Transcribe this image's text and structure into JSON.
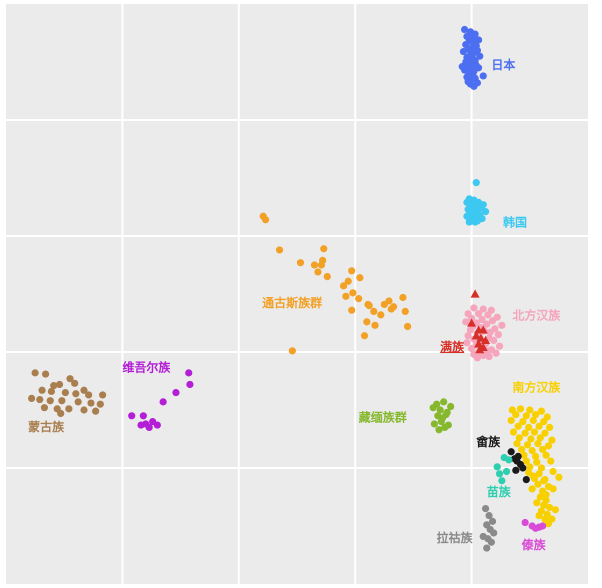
{
  "chart_data": {
    "type": "scatter",
    "title": "",
    "xlabel": "",
    "ylabel": "",
    "xlim": [
      0,
      5
    ],
    "ylim": [
      0,
      5
    ],
    "grid": true,
    "legend": "none",
    "colors": {
      "background": "#ebebeb",
      "grid": "#ffffff"
    },
    "series": [
      {
        "name": "日本",
        "color": "#4c6ef0",
        "marker": "circle",
        "x": [
          3.94,
          3.99,
          4.03,
          3.96,
          4.01,
          4.06,
          3.98,
          4.02,
          3.95,
          4.04,
          4.0,
          3.97,
          4.05,
          3.93,
          4.02,
          3.99,
          4.07,
          3.96,
          4.01,
          3.98,
          4.03,
          3.95,
          4.0,
          3.97,
          4.04,
          3.92,
          4.06,
          3.99,
          3.94,
          4.02,
          3.98,
          4.01,
          4.1,
          3.96,
          4.03,
          4.0,
          3.97,
          4.05,
          3.99,
          4.02
        ],
        "y": [
          4.78,
          4.76,
          4.74,
          4.72,
          4.71,
          4.69,
          4.68,
          4.66,
          4.65,
          4.64,
          4.62,
          4.61,
          4.6,
          4.59,
          4.58,
          4.56,
          4.55,
          4.54,
          4.53,
          4.52,
          4.51,
          4.5,
          4.49,
          4.48,
          4.47,
          4.46,
          4.45,
          4.44,
          4.43,
          4.42,
          4.4,
          4.39,
          4.38,
          4.37,
          4.36,
          4.35,
          4.33,
          4.32,
          4.31,
          4.29
        ]
      },
      {
        "name": "韩国",
        "color": "#3cc8f0",
        "marker": "circle",
        "x": [
          4.04,
          3.98,
          4.02,
          3.96,
          4.06,
          4.0,
          4.1,
          3.99,
          4.03,
          4.08,
          3.97,
          4.05,
          4.01,
          4.12,
          3.99,
          4.04,
          4.07,
          3.96,
          4.02,
          4.09,
          4.0,
          4.05,
          3.98,
          4.03
        ],
        "y": [
          3.46,
          3.32,
          3.31,
          3.29,
          3.29,
          3.28,
          3.27,
          3.26,
          3.25,
          3.24,
          3.23,
          3.23,
          3.22,
          3.21,
          3.2,
          3.19,
          3.18,
          3.17,
          3.16,
          3.15,
          3.14,
          3.13,
          3.12,
          3.12
        ]
      },
      {
        "name": "北方汉族",
        "color": "#f5a5bc",
        "marker": "circle",
        "x": [
          4.02,
          4.1,
          4.17,
          3.97,
          4.06,
          4.14,
          4.22,
          4.0,
          4.09,
          4.18,
          3.95,
          4.04,
          4.13,
          4.26,
          4.01,
          4.08,
          4.2,
          3.99,
          4.11,
          4.16,
          4.05,
          4.23,
          3.97,
          4.07,
          4.15,
          4.02,
          4.19,
          4.1,
          3.96,
          4.12,
          4.04,
          4.24,
          4.08,
          4.0,
          4.17,
          4.13,
          4.06,
          4.21,
          4.02,
          4.1,
          4.15,
          4.05
        ],
        "y": [
          2.38,
          2.37,
          2.36,
          2.33,
          2.33,
          2.32,
          2.3,
          2.29,
          2.28,
          2.27,
          2.26,
          2.25,
          2.24,
          2.23,
          2.22,
          2.21,
          2.2,
          2.19,
          2.18,
          2.17,
          2.16,
          2.15,
          2.14,
          2.13,
          2.12,
          2.11,
          2.1,
          2.09,
          2.08,
          2.07,
          2.06,
          2.05,
          2.04,
          2.03,
          2.02,
          2.01,
          2.0,
          1.99,
          1.98,
          1.97,
          1.96,
          1.95
        ]
      },
      {
        "name": "满族",
        "color": "#d62f28",
        "marker": "triangle",
        "x": [
          4.03,
          4.0,
          4.06,
          4.1,
          4.04,
          4.08,
          4.12,
          4.06,
          4.1,
          4.07
        ],
        "y": [
          2.5,
          2.25,
          2.19,
          2.19,
          2.14,
          2.12,
          2.1,
          2.07,
          2.04,
          2.02
        ]
      },
      {
        "name": "南方汉族",
        "color": "#f8d000",
        "marker": "circle",
        "x": [
          4.35,
          4.42,
          4.5,
          4.6,
          4.38,
          4.47,
          4.55,
          4.65,
          4.34,
          4.44,
          4.53,
          4.62,
          4.4,
          4.49,
          4.58,
          4.67,
          4.36,
          4.46,
          4.54,
          4.63,
          4.41,
          4.51,
          4.59,
          4.69,
          4.39,
          4.48,
          4.57,
          4.66,
          4.43,
          4.52,
          4.61,
          4.45,
          4.55,
          4.64,
          4.47,
          4.56,
          4.68,
          4.5,
          4.6,
          4.49,
          4.58,
          4.54,
          4.63,
          4.57,
          4.52,
          4.66,
          4.61,
          4.7,
          4.59,
          4.56,
          4.64,
          4.62,
          4.67,
          4.6,
          4.72,
          4.58,
          4.65,
          4.63,
          4.69,
          4.66,
          4.53,
          4.62,
          4.7,
          4.75,
          4.64
        ],
        "y": [
          1.5,
          1.51,
          1.5,
          1.49,
          1.46,
          1.45,
          1.46,
          1.44,
          1.41,
          1.4,
          1.41,
          1.4,
          1.36,
          1.35,
          1.36,
          1.35,
          1.31,
          1.3,
          1.31,
          1.3,
          1.26,
          1.25,
          1.26,
          1.24,
          1.21,
          1.2,
          1.21,
          1.19,
          1.16,
          1.15,
          1.16,
          1.11,
          1.1,
          1.11,
          1.06,
          1.05,
          1.06,
          1.01,
          1.0,
          0.96,
          0.95,
          0.91,
          0.9,
          0.86,
          0.82,
          0.84,
          0.8,
          0.82,
          0.75,
          0.7,
          0.72,
          0.68,
          0.66,
          0.63,
          0.64,
          0.59,
          0.6,
          0.56,
          0.56,
          0.52,
          0.93,
          0.89,
          0.97,
          0.92,
          0.77
        ]
      },
      {
        "name": "畲族",
        "color": "#1a1a1a",
        "marker": "circle",
        "x": [
          4.34,
          4.37,
          4.39,
          4.4,
          4.42,
          4.44,
          4.38,
          4.47
        ],
        "y": [
          1.14,
          1.08,
          1.06,
          1.1,
          1.03,
          1.0,
          0.98,
          0.9
        ]
      },
      {
        "name": "苗族",
        "color": "#2ecfb0",
        "marker": "circle",
        "x": [
          4.22,
          4.28,
          4.24,
          4.26,
          4.3,
          4.32
        ],
        "y": [
          1.01,
          1.09,
          0.95,
          0.89,
          0.97,
          1.07
        ]
      },
      {
        "name": "藏缅族群",
        "color": "#86b82e",
        "marker": "circle",
        "x": [
          3.67,
          3.7,
          3.73,
          3.76,
          3.79,
          3.82,
          3.71,
          3.75,
          3.78,
          3.68,
          3.74,
          3.8,
          3.72,
          3.77
        ],
        "y": [
          1.52,
          1.55,
          1.5,
          1.57,
          1.48,
          1.53,
          1.45,
          1.43,
          1.46,
          1.38,
          1.4,
          1.37,
          1.33,
          1.35
        ]
      },
      {
        "name": "通古斯族群",
        "color": "#f2a026",
        "marker": "circle",
        "x": [
          2.21,
          2.23,
          2.35,
          2.53,
          2.71,
          2.73,
          2.65,
          2.68,
          2.76,
          2.72,
          2.97,
          2.94,
          2.98,
          2.9,
          2.92,
          3.03,
          3.04,
          2.97,
          3.11,
          3.12,
          3.16,
          3.1,
          3.17,
          3.25,
          3.31,
          3.33,
          3.43,
          3.45,
          3.41,
          3.29,
          3.22,
          3.08,
          2.46
        ],
        "y": [
          3.17,
          3.14,
          2.88,
          2.77,
          2.75,
          2.89,
          2.75,
          2.69,
          2.65,
          2.79,
          2.7,
          2.61,
          2.51,
          2.57,
          2.48,
          2.46,
          2.64,
          2.36,
          2.41,
          2.4,
          2.35,
          2.26,
          2.23,
          2.41,
          2.37,
          2.39,
          2.35,
          2.22,
          2.47,
          2.44,
          2.32,
          2.14,
          2.01
        ]
      },
      {
        "name": "维吾尔族",
        "color": "#b31ed6",
        "marker": "circle",
        "x": [
          1.57,
          1.58,
          1.35,
          1.46,
          1.18,
          1.26,
          1.3,
          1.16,
          1.23,
          1.2,
          1.08
        ],
        "y": [
          1.82,
          1.72,
          1.57,
          1.65,
          1.45,
          1.4,
          1.37,
          1.37,
          1.35,
          1.38,
          1.45
        ]
      },
      {
        "name": "蒙古族",
        "color": "#a97f50",
        "marker": "circle",
        "x": [
          0.25,
          0.34,
          0.46,
          0.55,
          0.41,
          0.59,
          0.67,
          0.31,
          0.39,
          0.51,
          0.6,
          0.71,
          0.83,
          0.22,
          0.29,
          0.38,
          0.48,
          0.62,
          0.73,
          0.81,
          0.33,
          0.44,
          0.54,
          0.67,
          0.77,
          0.47
        ],
        "y": [
          1.82,
          1.81,
          1.72,
          1.77,
          1.71,
          1.73,
          1.67,
          1.67,
          1.66,
          1.65,
          1.64,
          1.63,
          1.63,
          1.6,
          1.59,
          1.58,
          1.58,
          1.57,
          1.56,
          1.55,
          1.52,
          1.51,
          1.51,
          1.5,
          1.49,
          1.47
        ]
      },
      {
        "name": "拉祜族",
        "color": "#8a8a8a",
        "marker": "circle",
        "x": [
          4.12,
          4.15,
          4.18,
          4.13,
          4.16,
          4.19,
          4.1,
          4.14,
          4.17,
          4.13
        ],
        "y": [
          0.65,
          0.59,
          0.54,
          0.51,
          0.47,
          0.44,
          0.41,
          0.39,
          0.36,
          0.31
        ]
      },
      {
        "name": "傣族",
        "color": "#d94ad6",
        "marker": "circle",
        "x": [
          4.46,
          4.52,
          4.58,
          4.61,
          4.55
        ],
        "y": [
          0.53,
          0.5,
          0.49,
          0.5,
          0.48
        ]
      }
    ],
    "annotations": [
      {
        "text": "日本",
        "series": "日本",
        "x": 4.17,
        "y": 4.44,
        "color": "#4c6ef0"
      },
      {
        "text": "韩国",
        "series": "韩国",
        "x": 4.27,
        "y": 3.08,
        "color": "#3cc8f0"
      },
      {
        "text": "北方汉族",
        "series": "北方汉族",
        "x": 4.35,
        "y": 2.28,
        "color": "#f5a5bc"
      },
      {
        "text": "满族",
        "series": "满族",
        "x": 3.73,
        "y": 2.01,
        "color": "#d62f28",
        "underline": true
      },
      {
        "text": "南方汉族",
        "series": "南方汉族",
        "x": 4.35,
        "y": 1.66,
        "color": "#f8d000"
      },
      {
        "text": "畲族",
        "series": "畲族",
        "x": 4.04,
        "y": 1.19,
        "color": "#1a1a1a"
      },
      {
        "text": "苗族",
        "series": "苗族",
        "x": 4.13,
        "y": 0.76,
        "color": "#2ecfb0"
      },
      {
        "text": "藏缅族群",
        "series": "藏缅族群",
        "x": 3.03,
        "y": 1.4,
        "color": "#86b82e"
      },
      {
        "text": "通古斯族群",
        "series": "通古斯族群",
        "x": 2.2,
        "y": 2.39,
        "color": "#f2a026"
      },
      {
        "text": "维吾尔族",
        "series": "维吾尔族",
        "x": 1.0,
        "y": 1.83,
        "color": "#b31ed6"
      },
      {
        "text": "蒙古族",
        "series": "蒙古族",
        "x": 0.19,
        "y": 1.32,
        "color": "#a97f50"
      },
      {
        "text": "拉祜族",
        "series": "拉祜族",
        "x": 3.7,
        "y": 0.36,
        "color": "#8a8a8a"
      },
      {
        "text": "傣族",
        "series": "傣族",
        "x": 4.43,
        "y": 0.3,
        "color": "#d94ad6"
      }
    ]
  }
}
